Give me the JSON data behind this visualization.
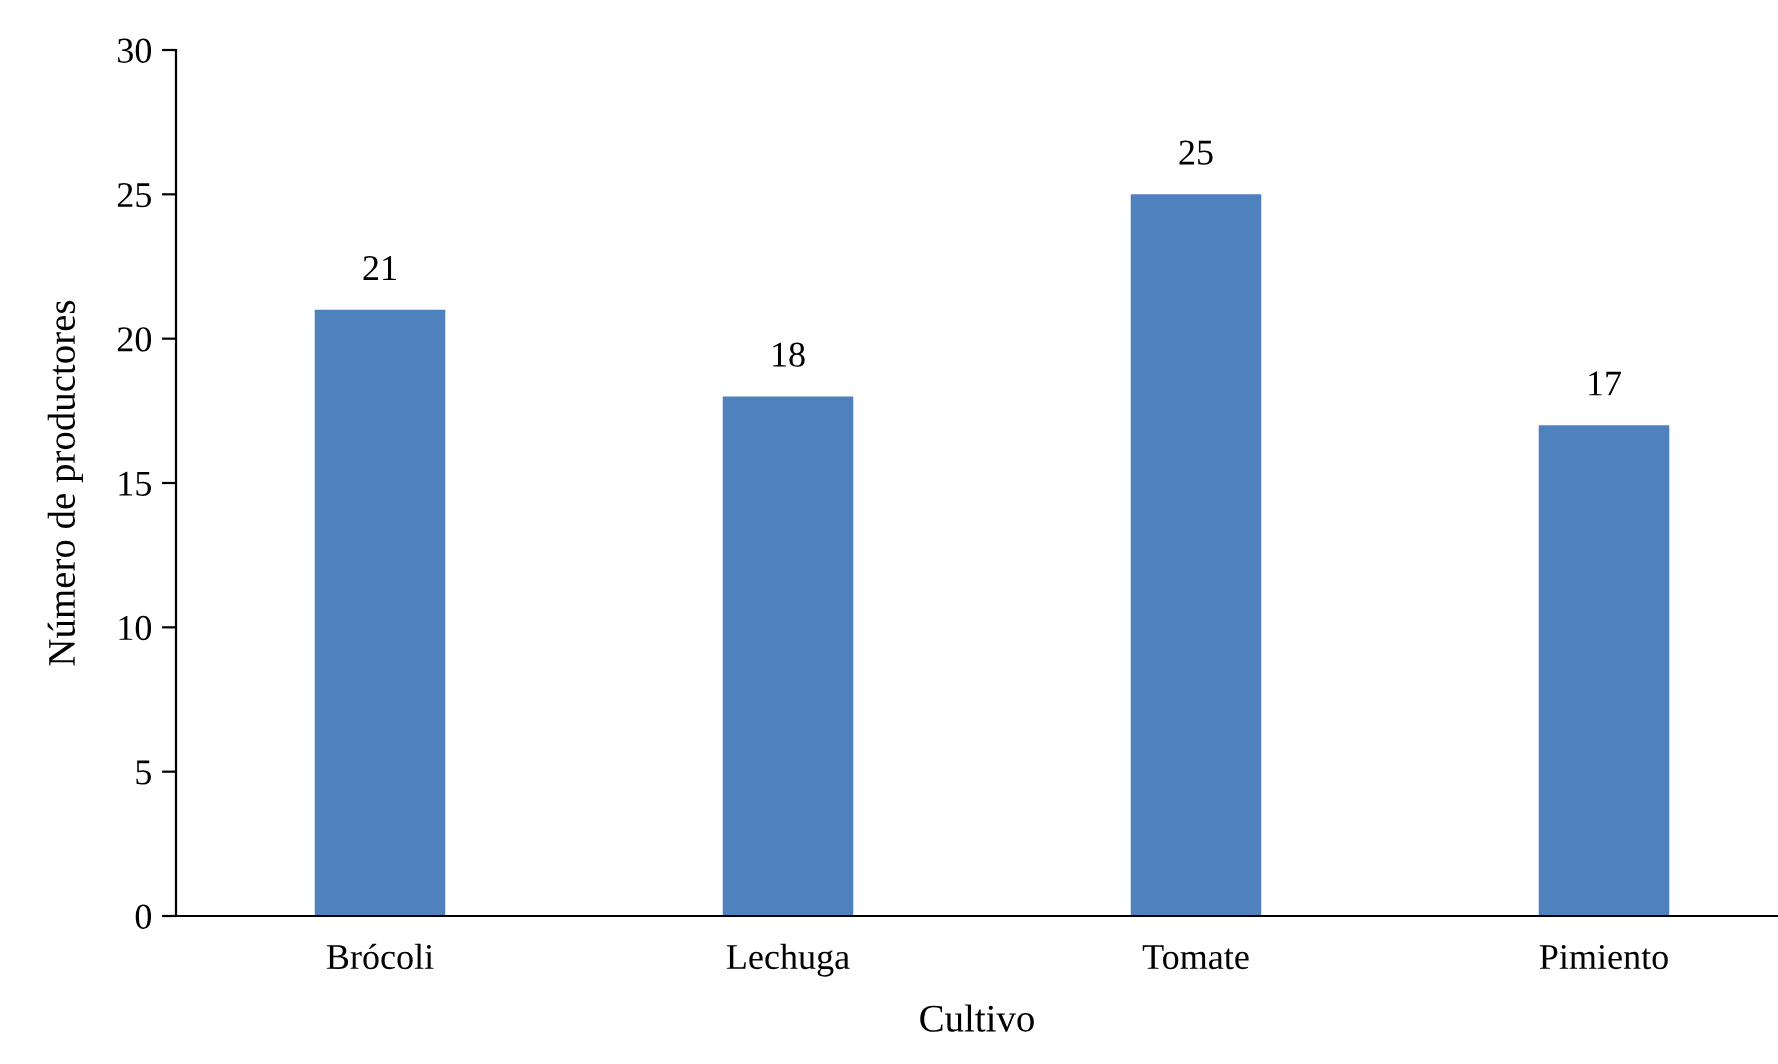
{
  "chart_data": {
    "type": "bar",
    "xlabel": "Cultivo",
    "ylabel": "Número de productores",
    "categories": [
      "Brócoli",
      "Lechuga",
      "Tomate",
      "Pimiento"
    ],
    "values": [
      21,
      18,
      25,
      17
    ],
    "color": "#4f81bd",
    "ylim": [
      0,
      30
    ],
    "yticks": [
      0,
      5,
      10,
      15,
      20,
      25,
      30
    ],
    "data_labels": true,
    "grid": false,
    "legend": false
  }
}
